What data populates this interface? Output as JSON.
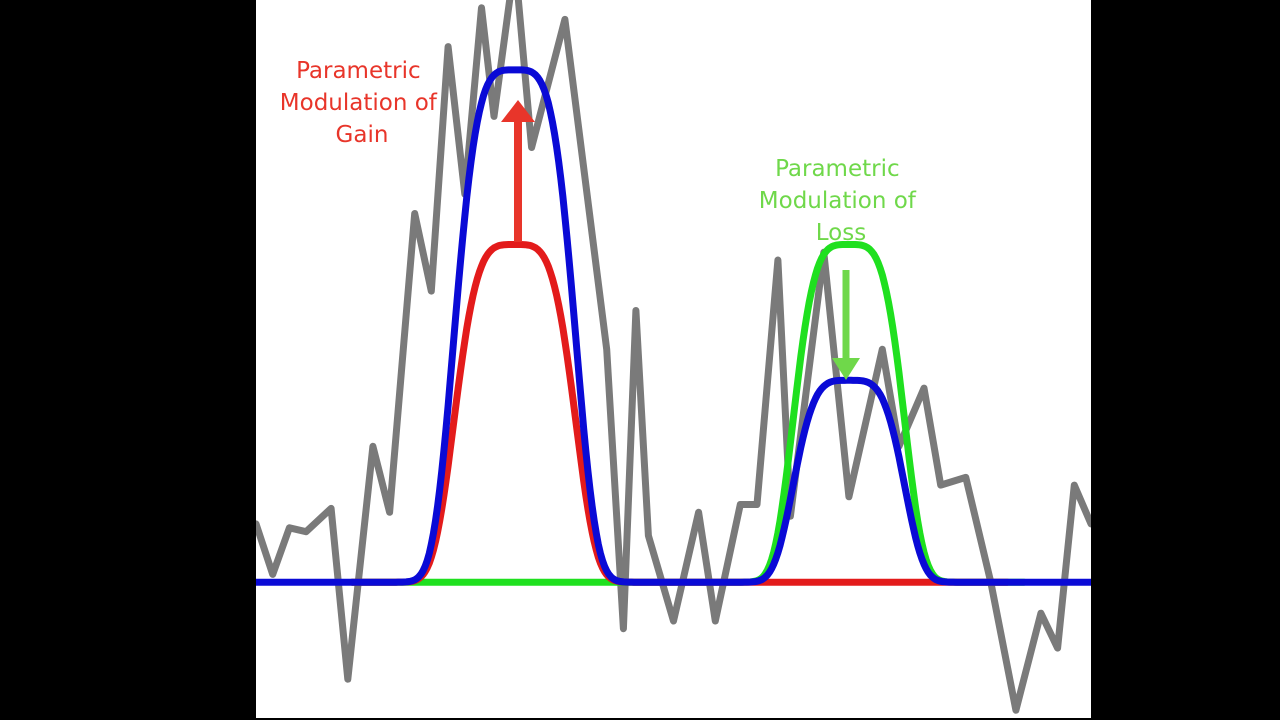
{
  "colors": {
    "background": "#000000",
    "panel": "#ffffff",
    "noisy_signal": "#7a7a7a",
    "gain_curve": "#e31b1b",
    "loss_curve": "#1fe01f",
    "modulated_curve": "#0a0ad6",
    "gain_label": "#e8352a",
    "loss_label": "#6fd84a",
    "gain_arrow": "#e8352a",
    "loss_arrow": "#6fd84a"
  },
  "annotations": {
    "gain": {
      "lines": [
        "Parametric",
        "Modulation of",
        "Gain"
      ],
      "arrow_direction": "up"
    },
    "loss": {
      "lines": [
        "Parametric",
        "Modulation of",
        "Loss"
      ],
      "arrow_direction": "down"
    }
  },
  "chart_data": {
    "type": "line",
    "title": "",
    "xlabel": "",
    "ylabel": "",
    "axes_visible": false,
    "x_range": [
      0,
      100
    ],
    "y_range": [
      -0.35,
      1.5
    ],
    "series": [
      {
        "key": "noisy",
        "color": "#7a7a7a",
        "points": [
          [
            0,
            0.15
          ],
          [
            2,
            0.02
          ],
          [
            4,
            0.14
          ],
          [
            6,
            0.13
          ],
          [
            9,
            0.19
          ],
          [
            11,
            -0.25
          ],
          [
            14,
            0.35
          ],
          [
            16,
            0.18
          ],
          [
            19,
            0.95
          ],
          [
            21,
            0.75
          ],
          [
            23,
            1.38
          ],
          [
            25,
            1.0
          ],
          [
            27,
            1.48
          ],
          [
            28.5,
            1.2
          ],
          [
            31,
            1.6
          ],
          [
            33,
            1.12
          ],
          [
            37,
            1.45
          ],
          [
            42,
            0.6
          ],
          [
            44,
            -0.12
          ],
          [
            45.5,
            0.7
          ],
          [
            47,
            0.12
          ],
          [
            50,
            -0.1
          ],
          [
            53,
            0.18
          ],
          [
            55,
            -0.1
          ],
          [
            58,
            0.2
          ],
          [
            60,
            0.2
          ],
          [
            62.5,
            0.83
          ],
          [
            64,
            0.17
          ],
          [
            68,
            0.85
          ],
          [
            71,
            0.22
          ],
          [
            75,
            0.6
          ],
          [
            77,
            0.35
          ],
          [
            80,
            0.5
          ],
          [
            82,
            0.25
          ],
          [
            85,
            0.27
          ],
          [
            88,
            0.0
          ],
          [
            91,
            -0.33
          ],
          [
            94,
            -0.08
          ],
          [
            96,
            -0.17
          ],
          [
            98,
            0.25
          ],
          [
            100,
            0.15
          ]
        ]
      },
      {
        "key": "gain",
        "color": "#e31b1b",
        "baseline": 0,
        "start": 11.5,
        "end": 57,
        "peak_x": 31,
        "peak_y": 0.87,
        "width": 7.2
      },
      {
        "key": "loss",
        "color": "#1fe01f",
        "baseline": 0,
        "start": 11.5,
        "end": 92,
        "peak_x": 71,
        "peak_y": 0.87,
        "width": 6.6
      },
      {
        "key": "modulated",
        "color": "#0a0ad6",
        "baseline": 0,
        "bumps": [
          {
            "peak_x": 31,
            "peak_y": 1.32,
            "width": 7.2
          },
          {
            "peak_x": 71,
            "peak_y": 0.52,
            "width": 6.6
          }
        ]
      }
    ]
  }
}
